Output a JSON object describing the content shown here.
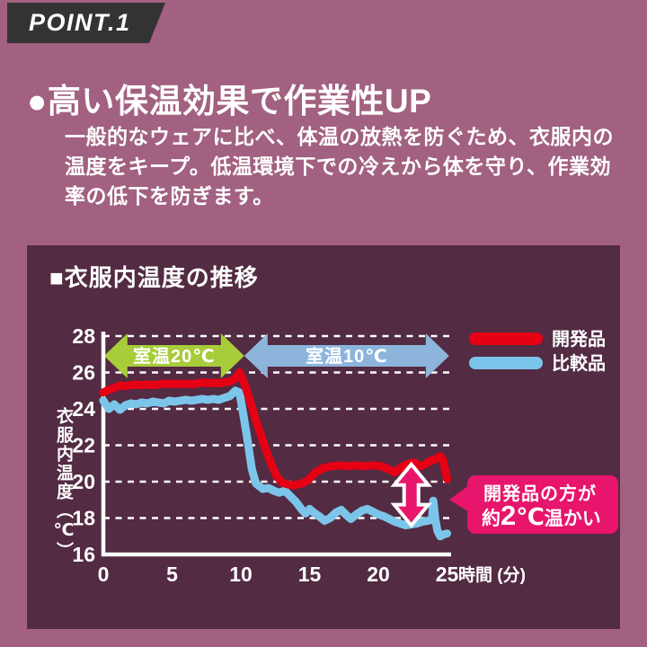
{
  "badge": {
    "label": "POINT.1"
  },
  "heading": {
    "text": "●高い保温効果で作業性UP"
  },
  "description": {
    "text": "一般的なウェアに比べ、体温の放熱を防ぐため、衣服内の\n温度をキープ。低温環境下での冷えから体を守り、作業効\n率の低下を防ぎます。"
  },
  "panel": {
    "title": "■衣服内温度の推移"
  },
  "chart_data": {
    "type": "line",
    "title": "衣服内温度の推移",
    "xlabel": "時間 (分)",
    "ylabel": "衣服内温度（℃）",
    "xlim": [
      0,
      25
    ],
    "ylim": [
      16,
      28
    ],
    "xticks": [
      0,
      5,
      10,
      15,
      20,
      25
    ],
    "yticks": [
      16,
      18,
      20,
      22,
      24,
      26,
      28
    ],
    "grid": "horizontal-dotted-white",
    "legend_position": "top-right",
    "zones": [
      {
        "label": "室温20℃",
        "x": [
          0.05,
          10.25
        ],
        "color": "#a8cc3a"
      },
      {
        "label": "室温10℃",
        "x": [
          10.25,
          25.15
        ],
        "color": "#8db5dc"
      }
    ],
    "series": [
      {
        "name": "開発品",
        "color": "#e60014",
        "points": [
          [
            0,
            24.9
          ],
          [
            0.4,
            25.05
          ],
          [
            0.8,
            25.15
          ],
          [
            1.2,
            25.3
          ],
          [
            1.6,
            25.25
          ],
          [
            2,
            25.3
          ],
          [
            2.4,
            25.35
          ],
          [
            2.8,
            25.3
          ],
          [
            3.2,
            25.35
          ],
          [
            3.6,
            25.3
          ],
          [
            4,
            25.35
          ],
          [
            4.4,
            25.4
          ],
          [
            4.8,
            25.35
          ],
          [
            5.2,
            25.4
          ],
          [
            5.6,
            25.35
          ],
          [
            6,
            25.4
          ],
          [
            6.4,
            25.35
          ],
          [
            6.8,
            25.4
          ],
          [
            7.2,
            25.45
          ],
          [
            7.6,
            25.4
          ],
          [
            8,
            25.45
          ],
          [
            8.4,
            25.4
          ],
          [
            8.8,
            25.45
          ],
          [
            9.2,
            25.5
          ],
          [
            9.6,
            25.65
          ],
          [
            9.9,
            26.0
          ],
          [
            10.2,
            25.5
          ],
          [
            10.6,
            24.6
          ],
          [
            11,
            23.6
          ],
          [
            11.4,
            22.7
          ],
          [
            11.8,
            21.8
          ],
          [
            12.2,
            21.0
          ],
          [
            12.6,
            20.3
          ],
          [
            13,
            19.95
          ],
          [
            13.4,
            19.85
          ],
          [
            13.8,
            19.8
          ],
          [
            14.2,
            19.85
          ],
          [
            14.6,
            19.95
          ],
          [
            15,
            20.15
          ],
          [
            15.4,
            20.5
          ],
          [
            16,
            20.75
          ],
          [
            16.6,
            20.85
          ],
          [
            17.2,
            20.9
          ],
          [
            17.8,
            20.85
          ],
          [
            18.4,
            20.9
          ],
          [
            19,
            20.85
          ],
          [
            19.6,
            20.9
          ],
          [
            20.2,
            20.85
          ],
          [
            20.7,
            20.7
          ],
          [
            21.2,
            20.5
          ],
          [
            21.7,
            20.8
          ],
          [
            22.2,
            21.0
          ],
          [
            22.6,
            21.05
          ],
          [
            23,
            20.85
          ],
          [
            23.4,
            20.95
          ],
          [
            23.8,
            21.15
          ],
          [
            24.2,
            21.25
          ],
          [
            24.5,
            21.4
          ],
          [
            24.7,
            21.2
          ],
          [
            25,
            20.15
          ]
        ]
      },
      {
        "name": "比較品",
        "color": "#7cc5ea",
        "points": [
          [
            0,
            24.45
          ],
          [
            0.4,
            24.0
          ],
          [
            0.8,
            24.25
          ],
          [
            1.2,
            23.95
          ],
          [
            1.6,
            24.2
          ],
          [
            2,
            24.3
          ],
          [
            2.4,
            24.25
          ],
          [
            2.8,
            24.35
          ],
          [
            3.2,
            24.3
          ],
          [
            3.6,
            24.4
          ],
          [
            4,
            24.35
          ],
          [
            4.4,
            24.3
          ],
          [
            4.8,
            24.45
          ],
          [
            5.2,
            24.4
          ],
          [
            5.6,
            24.45
          ],
          [
            6,
            24.5
          ],
          [
            6.4,
            24.45
          ],
          [
            6.8,
            24.5
          ],
          [
            7.2,
            24.55
          ],
          [
            7.6,
            24.5
          ],
          [
            8,
            24.55
          ],
          [
            8.4,
            24.5
          ],
          [
            8.8,
            24.6
          ],
          [
            9.2,
            24.7
          ],
          [
            9.6,
            25.0
          ],
          [
            9.9,
            24.9
          ],
          [
            10.2,
            23.6
          ],
          [
            10.5,
            22.2
          ],
          [
            10.8,
            20.7
          ],
          [
            11.1,
            19.9
          ],
          [
            11.6,
            19.6
          ],
          [
            12,
            19.65
          ],
          [
            12.4,
            19.5
          ],
          [
            12.8,
            19.4
          ],
          [
            13.2,
            19.5
          ],
          [
            13.6,
            19.2
          ],
          [
            14,
            18.9
          ],
          [
            14.4,
            18.5
          ],
          [
            14.7,
            18.25
          ],
          [
            15,
            18.5
          ],
          [
            15.3,
            18.3
          ],
          [
            15.7,
            18.1
          ],
          [
            16.1,
            17.85
          ],
          [
            16.5,
            18.0
          ],
          [
            16.9,
            18.3
          ],
          [
            17.3,
            18.45
          ],
          [
            17.7,
            18.15
          ],
          [
            18,
            17.95
          ],
          [
            18.4,
            18.2
          ],
          [
            18.8,
            18.4
          ],
          [
            19.2,
            18.5
          ],
          [
            19.6,
            18.35
          ],
          [
            20,
            18.2
          ],
          [
            20.4,
            18.1
          ],
          [
            20.8,
            17.95
          ],
          [
            21.2,
            17.8
          ],
          [
            21.6,
            17.7
          ],
          [
            22,
            17.6
          ],
          [
            22.4,
            17.65
          ],
          [
            22.8,
            17.7
          ],
          [
            23.2,
            17.8
          ],
          [
            23.6,
            17.85
          ],
          [
            23.9,
            17.9
          ],
          [
            24.0,
            18.95
          ],
          [
            24.15,
            17.9
          ],
          [
            24.3,
            17.3
          ],
          [
            24.5,
            17.0
          ],
          [
            24.75,
            17.1
          ],
          [
            25,
            17.15
          ]
        ]
      }
    ],
    "gap_arrow": {
      "x": 22.4,
      "y_from": 17.6,
      "y_to": 20.95,
      "color": "#e7156b"
    },
    "callout": {
      "line1": "開発品の方が",
      "line2_parts": [
        "約",
        "2",
        "℃",
        "温かい"
      ],
      "color": "#e7156b"
    }
  }
}
